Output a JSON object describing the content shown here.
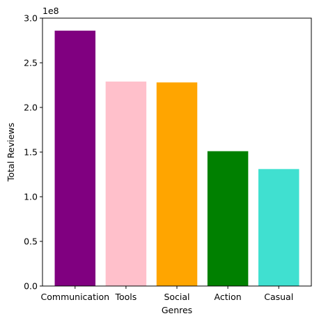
{
  "chart_data": {
    "type": "bar",
    "title": "",
    "xlabel": "Genres",
    "ylabel": "Total Reviews",
    "offset_label": "1e8",
    "categories": [
      "Communication",
      "Tools",
      "Social",
      "Action",
      "Casual"
    ],
    "values": [
      286000000,
      229000000,
      228000000,
      151000000,
      131000000
    ],
    "colors": [
      "#800080",
      "#ffc0cb",
      "#ffa500",
      "#008000",
      "#40e0d0"
    ],
    "ylim": [
      0,
      300000000
    ],
    "yticks": [
      0,
      50000000,
      100000000,
      150000000,
      200000000,
      250000000,
      300000000
    ],
    "ytick_labels": [
      "0.0",
      "0.5",
      "1.0",
      "1.5",
      "2.0",
      "2.5",
      "3.0"
    ],
    "grid": false,
    "legend": "none"
  }
}
